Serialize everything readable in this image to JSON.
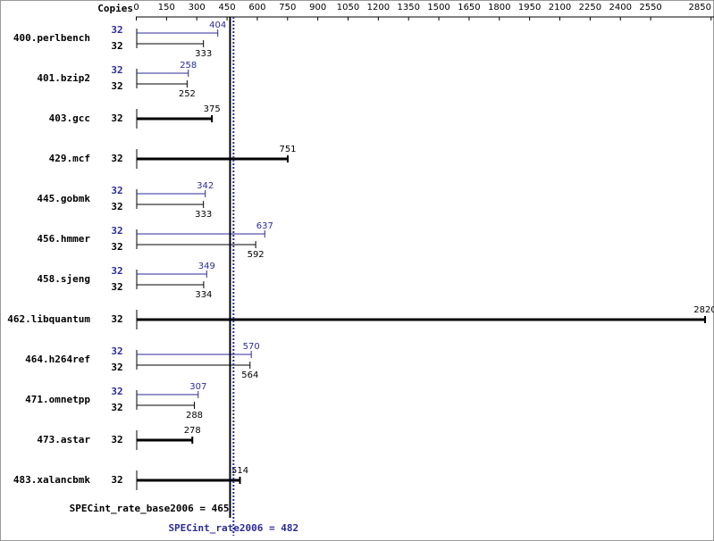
{
  "chart_data": {
    "type": "bar",
    "orientation": "horizontal",
    "copies_label": "Copies",
    "categories": [
      "400.perlbench",
      "401.bzip2",
      "403.gcc",
      "429.mcf",
      "445.gobmk",
      "456.hmmer",
      "458.sjeng",
      "462.libquantum",
      "464.h264ref",
      "471.omnetpp",
      "473.astar",
      "483.xalancbmk"
    ],
    "series": [
      {
        "color": "#000000",
        "copies": [
          32,
          32,
          32,
          32,
          32,
          32,
          32,
          32,
          32,
          32,
          32,
          32
        ],
        "values": [
          333,
          252,
          375,
          751,
          333,
          592,
          334,
          2820,
          564,
          288,
          278,
          514
        ]
      },
      {
        "color": "#2b2b9a",
        "copies": [
          32,
          32,
          null,
          null,
          32,
          32,
          32,
          null,
          32,
          32,
          null,
          null
        ],
        "values": [
          404,
          258,
          null,
          null,
          342,
          637,
          349,
          null,
          570,
          307,
          null,
          null
        ]
      }
    ],
    "reference_lines": [
      {
        "label": "SPECint_rate_base2006 = 465",
        "value": 465,
        "color": "#000000",
        "style": "solid"
      },
      {
        "label": "SPECint_rate2006 = 482",
        "value": 482,
        "color": "#2b2b9a",
        "style": "dotted"
      }
    ],
    "xlim": [
      0,
      2850
    ],
    "xticks": [
      0,
      150,
      300,
      450,
      600,
      750,
      900,
      1050,
      1200,
      1350,
      1500,
      1650,
      1800,
      1950,
      2100,
      2250,
      2400,
      2550,
      2850
    ]
  }
}
